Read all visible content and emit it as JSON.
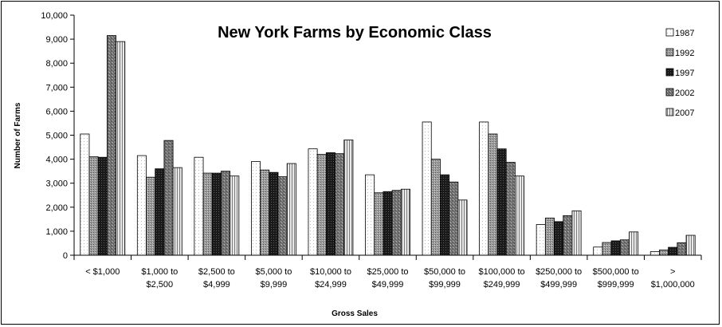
{
  "chart_data": {
    "type": "bar",
    "title": "New York Farms by Economic Class",
    "xlabel": "Gross Sales",
    "ylabel": "Number of Farms",
    "ylim": [
      0,
      10000
    ],
    "yticks": [
      "0",
      "1,000",
      "2,000",
      "3,000",
      "4,000",
      "5,000",
      "6,000",
      "7,000",
      "8,000",
      "9,000",
      "10,000"
    ],
    "grid": false,
    "legend_position": "right",
    "categories": [
      [
        "< $1,000"
      ],
      [
        "$1,000 to",
        "$2,500"
      ],
      [
        "$2,500 to",
        "$4,999"
      ],
      [
        "$5,000 to",
        "$9,999"
      ],
      [
        "$10,000 to",
        "$24,999"
      ],
      [
        "$25,000 to",
        "$49,999"
      ],
      [
        "$50,000 to",
        "$99,999"
      ],
      [
        "$100,000 to",
        "$249,999"
      ],
      [
        "$250,000 to",
        "$499,999"
      ],
      [
        "$500,000 to",
        "$999,999"
      ],
      [
        ">",
        "$1,000,000"
      ]
    ],
    "series": [
      {
        "name": "1987",
        "values": [
          5050,
          4150,
          4080,
          3900,
          4430,
          3350,
          5550,
          5550,
          1280,
          340,
          150
        ]
      },
      {
        "name": "1992",
        "values": [
          4100,
          3250,
          3420,
          3550,
          4200,
          2600,
          4000,
          5050,
          1550,
          530,
          220
        ]
      },
      {
        "name": "1997",
        "values": [
          4080,
          3600,
          3420,
          3450,
          4270,
          2650,
          3350,
          4430,
          1400,
          600,
          330
        ]
      },
      {
        "name": "2002",
        "values": [
          9150,
          4780,
          3500,
          3270,
          4230,
          2700,
          3050,
          3870,
          1650,
          640,
          520
        ]
      },
      {
        "name": "2007",
        "values": [
          8900,
          3650,
          3300,
          3820,
          4800,
          2750,
          2300,
          3300,
          1850,
          970,
          830
        ]
      }
    ],
    "series_patterns": [
      "dots-white",
      "fine-grid-gray",
      "dark-dense",
      "medium-gray-cross",
      "vertical-stripes"
    ]
  }
}
